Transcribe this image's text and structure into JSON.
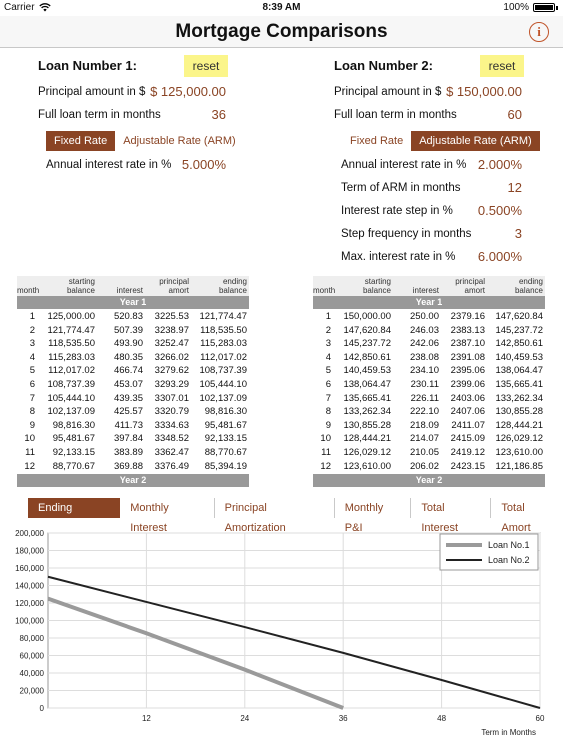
{
  "status": {
    "carrier": "Carrier",
    "time": "8:39 AM",
    "battery": "100%"
  },
  "nav": {
    "title": "Mortgage Comparisons",
    "info_icon": "i"
  },
  "loan1": {
    "heading": "Loan Number 1:",
    "reset": "reset",
    "principal_label": "Principal amount in $",
    "principal": "$ 125,000.00",
    "term_label": "Full loan term in months",
    "term": "36",
    "rate_types": [
      "Fixed Rate",
      "Adjustable Rate (ARM)"
    ],
    "selected_rate_type": "Fixed Rate",
    "fields": [
      {
        "label": "Annual interest rate in %",
        "value": "5.000%"
      }
    ]
  },
  "loan2": {
    "heading": "Loan Number 2:",
    "reset": "reset",
    "principal_label": "Principal amount in $",
    "principal": "$ 150,000.00",
    "term_label": "Full loan term in months",
    "term": "60",
    "rate_types": [
      "Fixed Rate",
      "Adjustable Rate (ARM)"
    ],
    "selected_rate_type": "Adjustable Rate (ARM)",
    "fields": [
      {
        "label": "Annual interest rate in %",
        "value": "2.000%"
      },
      {
        "label": "Term of ARM in months",
        "value": "12"
      },
      {
        "label": "Interest rate step in %",
        "value": "0.500%"
      },
      {
        "label": "Step frequency in months",
        "value": "3"
      },
      {
        "label": "Max. interest rate in %",
        "value": "6.000%"
      }
    ]
  },
  "table_headers": [
    "month",
    "starting balance",
    "interest",
    "principal amort",
    "ending balance"
  ],
  "table1": {
    "year1": "Year 1",
    "year2": "Year 2",
    "rows": [
      [
        "1",
        "125,000.00",
        "520.83",
        "3225.53",
        "121,774.47"
      ],
      [
        "2",
        "121,774.47",
        "507.39",
        "3238.97",
        "118,535.50"
      ],
      [
        "3",
        "118,535.50",
        "493.90",
        "3252.47",
        "115,283.03"
      ],
      [
        "4",
        "115,283.03",
        "480.35",
        "3266.02",
        "112,017.02"
      ],
      [
        "5",
        "112,017.02",
        "466.74",
        "3279.62",
        "108,737.39"
      ],
      [
        "6",
        "108,737.39",
        "453.07",
        "3293.29",
        "105,444.10"
      ],
      [
        "7",
        "105,444.10",
        "439.35",
        "3307.01",
        "102,137.09"
      ],
      [
        "8",
        "102,137.09",
        "425.57",
        "3320.79",
        "98,816.30"
      ],
      [
        "9",
        "98,816.30",
        "411.73",
        "3334.63",
        "95,481.67"
      ],
      [
        "10",
        "95,481.67",
        "397.84",
        "3348.52",
        "92,133.15"
      ],
      [
        "11",
        "92,133.15",
        "383.89",
        "3362.47",
        "88,770.67"
      ],
      [
        "12",
        "88,770.67",
        "369.88",
        "3376.49",
        "85,394.19"
      ]
    ]
  },
  "table2": {
    "year1": "Year 1",
    "year2": "Year 2",
    "rows": [
      [
        "1",
        "150,000.00",
        "250.00",
        "2379.16",
        "147,620.84"
      ],
      [
        "2",
        "147,620.84",
        "246.03",
        "2383.13",
        "145,237.72"
      ],
      [
        "3",
        "145,237.72",
        "242.06",
        "2387.10",
        "142,850.61"
      ],
      [
        "4",
        "142,850.61",
        "238.08",
        "2391.08",
        "140,459.53"
      ],
      [
        "5",
        "140,459.53",
        "234.10",
        "2395.06",
        "138,064.47"
      ],
      [
        "6",
        "138,064.47",
        "230.11",
        "2399.06",
        "135,665.41"
      ],
      [
        "7",
        "135,665.41",
        "226.11",
        "2403.06",
        "133,262.34"
      ],
      [
        "8",
        "133,262.34",
        "222.10",
        "2407.06",
        "130,855.28"
      ],
      [
        "9",
        "130,855.28",
        "218.09",
        "2411.07",
        "128,444.21"
      ],
      [
        "10",
        "128,444.21",
        "214.07",
        "2415.09",
        "126,029.12"
      ],
      [
        "11",
        "126,029.12",
        "210.05",
        "2419.12",
        "123,610.00"
      ],
      [
        "12",
        "123,610.00",
        "206.02",
        "2423.15",
        "121,186.85"
      ]
    ]
  },
  "chart_tabs": [
    "Ending Balance",
    "Monthly Interest",
    "Principal Amortization",
    "Monthly P&I",
    "Total Interest",
    "Total Amort"
  ],
  "selected_chart_tab": "Ending Balance",
  "chart_data": {
    "type": "line",
    "xlabel": "Term in Months",
    "ylabel": "",
    "xlim": [
      0,
      60
    ],
    "ylim": [
      0,
      200000
    ],
    "xticks": [
      12,
      24,
      36,
      48,
      60
    ],
    "yticks": [
      0,
      20000,
      40000,
      60000,
      80000,
      100000,
      120000,
      140000,
      160000,
      180000,
      200000
    ],
    "ytick_labels": [
      "0",
      "20,000",
      "40,000",
      "60,000",
      "80,000",
      "100,000",
      "120,000",
      "140,000",
      "160,000",
      "180,000",
      "200,000"
    ],
    "grid": true,
    "legend_position": "top-right",
    "series": [
      {
        "name": "Loan No.1",
        "color": "#9a9a9a",
        "x": [
          0,
          12,
          24,
          36
        ],
        "y": [
          125000,
          85394,
          43818,
          0
        ]
      },
      {
        "name": "Loan No.2",
        "color": "#222222",
        "x": [
          0,
          12,
          24,
          36,
          48,
          60
        ],
        "y": [
          150000,
          121187,
          92500,
          63000,
          32000,
          0
        ]
      }
    ]
  }
}
